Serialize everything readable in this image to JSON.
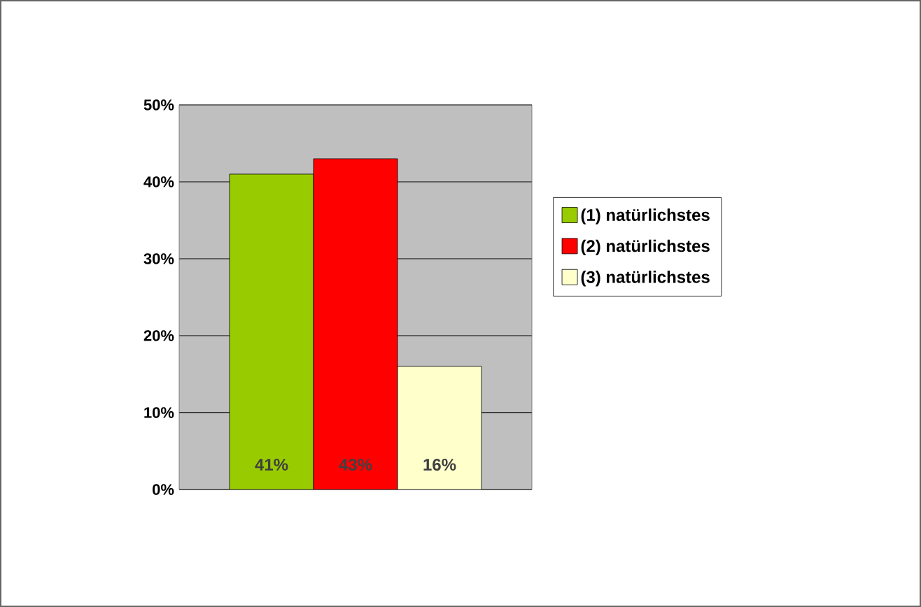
{
  "chart_data": {
    "type": "bar",
    "categories": [
      null
    ],
    "series": [
      {
        "name": "(1) natürlichstes",
        "color": "#99cc00",
        "values": [
          41
        ],
        "value_labels": [
          "41%"
        ]
      },
      {
        "name": "(2) natürlichstes",
        "color": "#ff0000",
        "values": [
          43
        ],
        "value_labels": [
          "43%"
        ]
      },
      {
        "name": "(3) natürlichstes",
        "color": "#ffffcc",
        "values": [
          16
        ],
        "value_labels": [
          "16%"
        ]
      }
    ],
    "ylim": [
      0,
      50
    ],
    "yticks": [
      {
        "value": 0,
        "label": "0%"
      },
      {
        "value": 10,
        "label": "10%"
      },
      {
        "value": 20,
        "label": "20%"
      },
      {
        "value": 30,
        "label": "30%"
      },
      {
        "value": 40,
        "label": "40%"
      },
      {
        "value": 50,
        "label": "50%"
      }
    ],
    "grid": "y",
    "legend": "right"
  }
}
